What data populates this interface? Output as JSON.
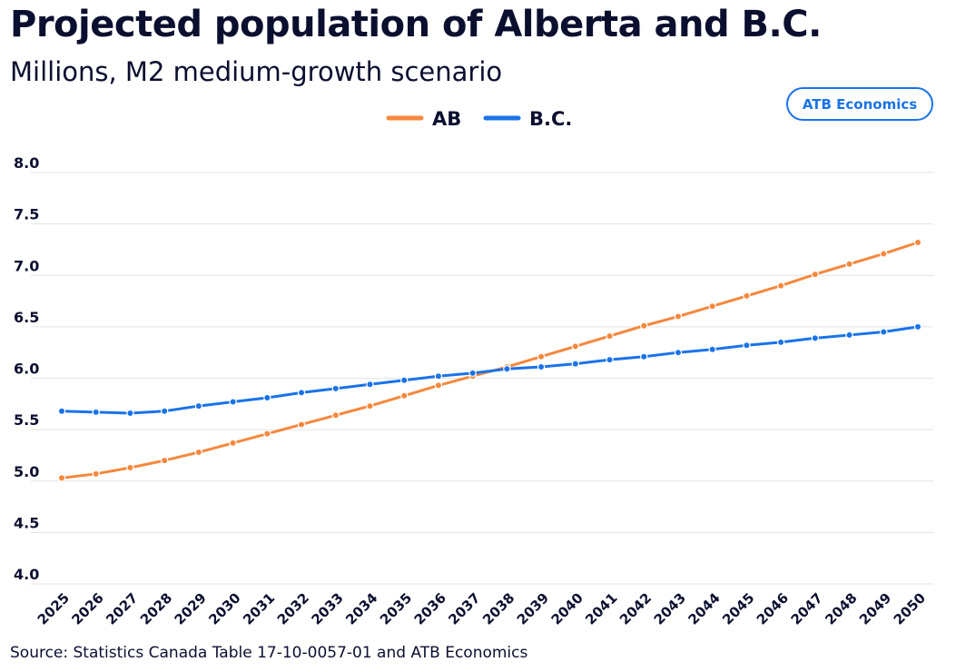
{
  "header": {
    "title": "Projected population of Alberta and B.C.",
    "subtitle": "Millions, M2 medium-growth scenario",
    "badge": "ATB Economics"
  },
  "footer": {
    "source": "Source: Statistics Canada Table 17-10-0057-01 and ATB Economics"
  },
  "colors": {
    "ab": "#f5883d",
    "bc": "#1a73e8",
    "text": "#0b0f2f",
    "grid": "#e3e3e3"
  },
  "chart_data": {
    "type": "line",
    "title": "Projected population of Alberta and B.C.",
    "subtitle": "Millions, M2 medium-growth scenario",
    "xlabel": "",
    "ylabel": "",
    "ylim": [
      4.0,
      8.0
    ],
    "yticks": [
      "4.0",
      "4.5",
      "5.0",
      "5.5",
      "6.0",
      "6.5",
      "7.0",
      "7.5",
      "8.0"
    ],
    "grid": true,
    "legend_position": "top-center",
    "categories": [
      "2025",
      "2026",
      "2027",
      "2028",
      "2029",
      "2030",
      "2031",
      "2032",
      "2033",
      "2034",
      "2035",
      "2036",
      "2037",
      "2038",
      "2039",
      "2040",
      "2041",
      "2042",
      "2043",
      "2044",
      "2045",
      "2046",
      "2047",
      "2048",
      "2049",
      "2050"
    ],
    "series": [
      {
        "name": "AB",
        "color": "#f5883d",
        "values": [
          5.03,
          5.07,
          5.13,
          5.2,
          5.28,
          5.37,
          5.46,
          5.55,
          5.64,
          5.73,
          5.83,
          5.93,
          6.02,
          6.11,
          6.21,
          6.31,
          6.41,
          6.51,
          6.6,
          6.7,
          6.8,
          6.9,
          7.01,
          7.11,
          7.21,
          7.32
        ]
      },
      {
        "name": "B.C.",
        "color": "#1a73e8",
        "values": [
          5.68,
          5.67,
          5.66,
          5.68,
          5.73,
          5.77,
          5.81,
          5.86,
          5.9,
          5.94,
          5.98,
          6.02,
          6.05,
          6.09,
          6.11,
          6.14,
          6.18,
          6.21,
          6.25,
          6.28,
          6.32,
          6.35,
          6.39,
          6.42,
          6.45,
          6.5
        ]
      }
    ]
  }
}
